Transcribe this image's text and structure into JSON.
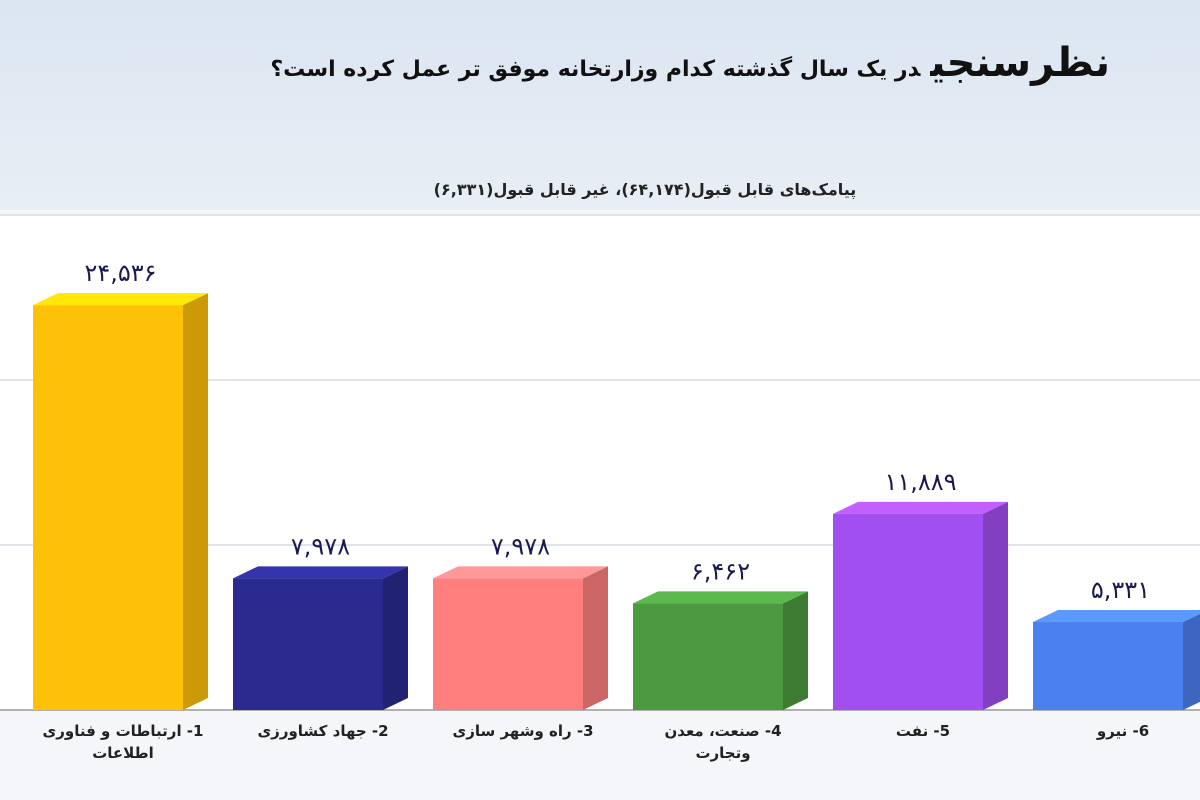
{
  "chart_data": {
    "type": "bar3d",
    "title": "نظرسنجی",
    "title_question": "در یک سال گذشته کدام وزارتخانه موفق تر عمل کرده است؟",
    "subtitle": "پیامک‌های قابل قبول(۶۴,۱۷۴)، غیر قابل قبول(۶,۳۳۱)",
    "categories": [
      "1- ارتباطات و فناوری اطلاعات",
      "2- جهاد کشاورزی",
      "3- راه وشهر سازی",
      "4- صنعت، معدن وتجارت",
      "5- نفت",
      "6- نیرو"
    ],
    "values": [
      24536,
      7978,
      7978,
      6462,
      11889,
      5331
    ],
    "value_labels": [
      "۲۴,۵۳۶",
      "۷,۹۷۸",
      "۷,۹۷۸",
      "۶,۴۶۲",
      "۱۱,۸۸۹",
      "۵,۳۳۱"
    ],
    "colors": [
      "#ffc107",
      "#2b2b8f",
      "#ff7f7f",
      "#4c9a40",
      "#a24ff2",
      "#4b80f0"
    ],
    "ylim": [
      0,
      30000
    ],
    "yticks": [
      0,
      10000,
      20000,
      30000
    ],
    "grid": true
  }
}
